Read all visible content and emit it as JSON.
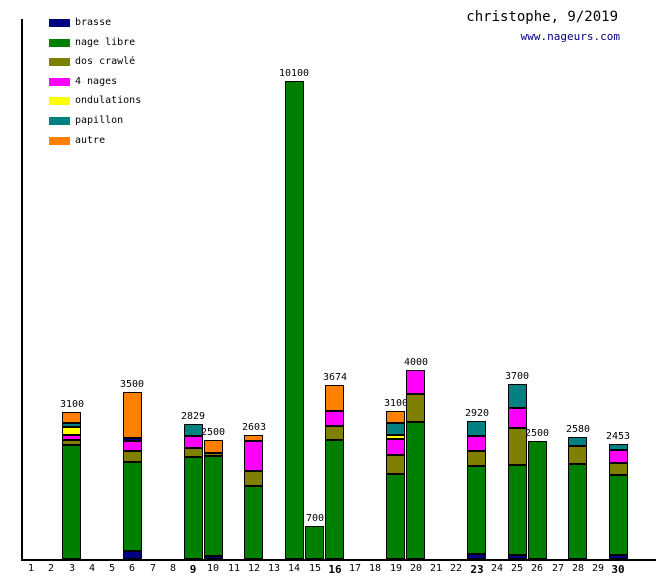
{
  "header": {
    "title": "christophe, 9/2019",
    "site_link": "www.nageurs.com"
  },
  "legend": [
    {
      "label": "brasse",
      "color": "#000080"
    },
    {
      "label": "nage libre",
      "color": "#008000"
    },
    {
      "label": "dos crawlé",
      "color": "#808000"
    },
    {
      "label": "4 nages",
      "color": "#ff00ff"
    },
    {
      "label": "ondulations",
      "color": "#ffff00"
    },
    {
      "label": "papillon",
      "color": "#008080"
    },
    {
      "label": "autre",
      "color": "#ff8000"
    }
  ],
  "chart_data": {
    "type": "bar",
    "stacked": true,
    "title": "christophe, 9/2019",
    "xlabel": "",
    "ylabel": "",
    "ylim": [
      0,
      10600
    ],
    "grid": false,
    "legend_position": "top-left",
    "categories": [
      1,
      2,
      3,
      4,
      5,
      6,
      7,
      8,
      9,
      10,
      11,
      12,
      13,
      14,
      15,
      16,
      17,
      18,
      19,
      20,
      21,
      22,
      23,
      24,
      25,
      26,
      27,
      28,
      29,
      30
    ],
    "bold_categories": [
      9,
      16,
      23,
      30
    ],
    "series_order": [
      "brasse",
      "nage libre",
      "dos crawlé",
      "4 nages",
      "ondulations",
      "papillon",
      "autre"
    ],
    "colors": {
      "brasse": "#000080",
      "nage libre": "#008000",
      "dos crawlé": "#808000",
      "4 nages": "#ff00ff",
      "ondulations": "#ffff00",
      "papillon": "#008080",
      "autre": "#ff8000"
    },
    "bars": [
      {
        "day": 3,
        "total": 3100,
        "segments": [
          [
            "nage libre",
            2400
          ],
          [
            "dos crawlé",
            105
          ],
          [
            "4 nages",
            105
          ],
          [
            "ondulations",
            175
          ],
          [
            "papillon",
            85
          ],
          [
            "autre",
            230
          ]
        ]
      },
      {
        "day": 6,
        "total": 3500,
        "segments": [
          [
            "brasse",
            175
          ],
          [
            "nage libre",
            1870
          ],
          [
            "dos crawlé",
            225
          ],
          [
            "4 nages",
            210
          ],
          [
            "brasse",
            40
          ],
          [
            "autre",
            980
          ]
        ]
      },
      {
        "day": 9,
        "total": 2829,
        "segments": [
          [
            "nage libre",
            2150
          ],
          [
            "dos crawlé",
            190
          ],
          [
            "4 nages",
            245
          ],
          [
            "papillon",
            244
          ]
        ]
      },
      {
        "day": 10,
        "total": 2500,
        "segments": [
          [
            "brasse",
            56
          ],
          [
            "nage libre",
            2120
          ],
          [
            "dos crawlé",
            40
          ],
          [
            "autre",
            284
          ]
        ]
      },
      {
        "day": 12,
        "total": 2603,
        "segments": [
          [
            "nage libre",
            1550
          ],
          [
            "dos crawlé",
            310
          ],
          [
            "4 nages",
            625
          ],
          [
            "autre",
            118
          ]
        ]
      },
      {
        "day": 14,
        "total": 10100,
        "segments": [
          [
            "nage libre",
            10100
          ]
        ]
      },
      {
        "day": 15,
        "total": 700,
        "segments": [
          [
            "nage libre",
            700
          ]
        ]
      },
      {
        "day": 16,
        "total": 3674,
        "segments": [
          [
            "nage libre",
            2520
          ],
          [
            "dos crawlé",
            290
          ],
          [
            "4 nages",
            314
          ],
          [
            "autre",
            550
          ]
        ]
      },
      {
        "day": 19,
        "total": 3100,
        "segments": [
          [
            "nage libre",
            1800
          ],
          [
            "dos crawlé",
            395
          ],
          [
            "4 nages",
            330
          ],
          [
            "ondulations",
            85
          ],
          [
            "papillon",
            245
          ],
          [
            "autre",
            245
          ]
        ]
      },
      {
        "day": 20,
        "total": 4000,
        "segments": [
          [
            "nage libre",
            2890
          ],
          [
            "dos crawlé",
            600
          ],
          [
            "4 nages",
            510
          ]
        ]
      },
      {
        "day": 23,
        "total": 2920,
        "segments": [
          [
            "brasse",
            115
          ],
          [
            "nage libre",
            1860
          ],
          [
            "dos crawlé",
            325
          ],
          [
            "4 nages",
            310
          ],
          [
            "papillon",
            310
          ]
        ]
      },
      {
        "day": 25,
        "total": 3700,
        "segments": [
          [
            "brasse",
            85
          ],
          [
            "nage libre",
            1900
          ],
          [
            "dos crawlé",
            790
          ],
          [
            "4 nages",
            425
          ],
          [
            "papillon",
            500
          ]
        ]
      },
      {
        "day": 26,
        "total": 2500,
        "segments": [
          [
            "nage libre",
            2500
          ]
        ]
      },
      {
        "day": 28,
        "total": 2580,
        "segments": [
          [
            "nage libre",
            2010
          ],
          [
            "dos crawlé",
            370
          ],
          [
            "papillon",
            200
          ]
        ]
      },
      {
        "day": 30,
        "total": 2453,
        "segments": [
          [
            "brasse",
            80
          ],
          [
            "nage libre",
            1700
          ],
          [
            "dos crawlé",
            260
          ],
          [
            "4 nages",
            280
          ],
          [
            "papillon",
            133
          ]
        ]
      }
    ]
  }
}
